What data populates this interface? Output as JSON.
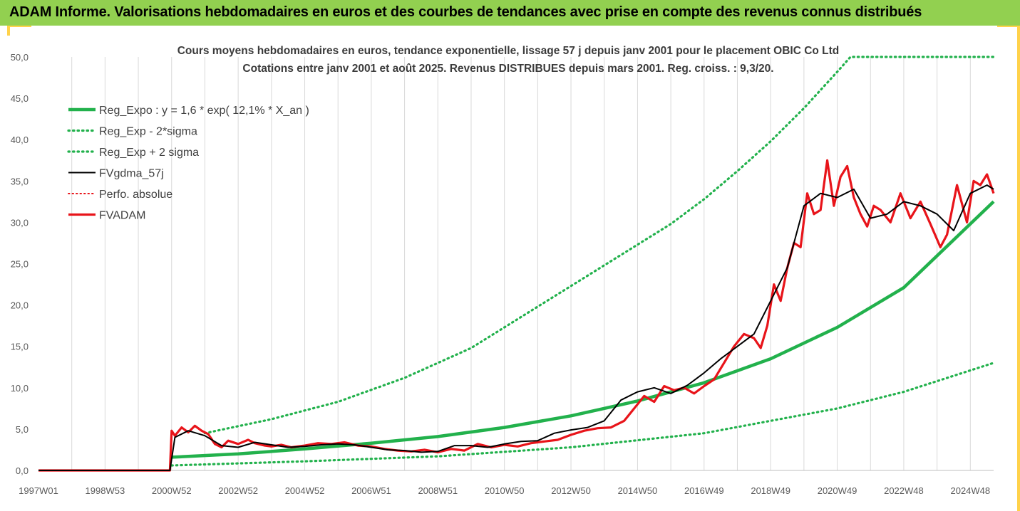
{
  "header": {
    "banner": "ADAM Informe. Valorisations hebdomadaires en euros et des courbes de tendances avec prise en compte des revenus connus distribués"
  },
  "colors": {
    "banner_bg": "#92d050",
    "trend_green": "#22b14c",
    "price_red": "#e8141a",
    "smooth_black": "#000000",
    "grid": "#d9d9d9"
  },
  "chart_data": {
    "type": "line",
    "title": "Cours moyens hebdomadaires en euros, tendance exponentielle, lissage 57 j depuis janv 2001 pour le placement OBIC Co Ltd",
    "subtitle": "Cotations entre janv 2001 et août 2025.  Revenus DISTRIBUES depuis mars 2001. Reg. croiss. : 9,3/20.",
    "xlabel": "",
    "ylabel": "",
    "x_range": [
      1997.0,
      2025.7
    ],
    "ylim": [
      0,
      50
    ],
    "y_ticks": [
      "0,0",
      "5,0",
      "10,0",
      "15,0",
      "20,0",
      "25,0",
      "30,0",
      "35,0",
      "40,0",
      "45,0",
      "50,0"
    ],
    "x_tick_labels": [
      "1997W01",
      "1998W53",
      "2000W52",
      "2002W52",
      "2004W52",
      "2006W51",
      "2008W51",
      "2010W50",
      "2012W50",
      "2014W50",
      "2016W49",
      "2018W49",
      "2020W49",
      "2022W48",
      "2024W48"
    ],
    "x_tick_positions": [
      1997.0,
      1999.0,
      2001.0,
      2003.0,
      2005.0,
      2007.0,
      2009.0,
      2011.0,
      2013.0,
      2015.0,
      2017.0,
      2019.0,
      2021.0,
      2023.0,
      2025.0
    ],
    "grid": "vertical",
    "legend_position": "top-left",
    "legend": [
      "Reg_Expo : y = 1,6 * exp( 12,1% *  X_an )",
      "Reg_Exp - 2*sigma",
      "Reg_Exp + 2 sigma",
      "FVgdma_57j",
      "Perfo. absolue",
      "FVADAM"
    ],
    "series": [
      {
        "name": "Reg_Expo : y = 1,6 * exp( 12,1% *  X_an )",
        "style": "solid-thick-green",
        "x": [
          2001.0,
          2003.0,
          2005.0,
          2007.0,
          2009.0,
          2011.0,
          2013.0,
          2015.0,
          2017.0,
          2019.0,
          2021.0,
          2023.0,
          2025.7
        ],
        "y": [
          1.6,
          2.0,
          2.6,
          3.3,
          4.1,
          5.2,
          6.6,
          8.4,
          10.6,
          13.5,
          17.3,
          22.1,
          32.5
        ]
      },
      {
        "name": "Reg_Exp - 2*sigma",
        "style": "dotted-green",
        "x": [
          2001.0,
          2005.0,
          2009.0,
          2013.0,
          2017.0,
          2021.0,
          2023.0,
          2025.7
        ],
        "y": [
          0.6,
          1.1,
          1.7,
          2.8,
          4.5,
          7.5,
          9.5,
          13.0
        ]
      },
      {
        "name": "Reg_Exp + 2 sigma",
        "style": "dotted-green",
        "x": [
          2002.0,
          2004.0,
          2006.0,
          2008.0,
          2010.0,
          2012.0,
          2014.0,
          2016.0,
          2017.0,
          2018.0,
          2019.0,
          2020.0,
          2021.0,
          2021.4,
          2025.7
        ],
        "y": [
          4.5,
          6.2,
          8.3,
          11.2,
          14.8,
          19.8,
          24.8,
          29.8,
          32.8,
          36.2,
          39.8,
          43.8,
          48.2,
          50.0,
          50.0
        ]
      },
      {
        "name": "FVgdma_57j",
        "style": "solid-black",
        "x": [
          1997.0,
          2000.95,
          2001.1,
          2001.5,
          2002.0,
          2002.5,
          2003.0,
          2003.5,
          2004.0,
          2004.5,
          2005.0,
          2005.5,
          2006.0,
          2006.5,
          2007.0,
          2007.5,
          2008.0,
          2008.5,
          2009.0,
          2009.5,
          2010.0,
          2010.5,
          2011.0,
          2011.5,
          2012.0,
          2012.5,
          2013.0,
          2013.5,
          2014.0,
          2014.5,
          2015.0,
          2015.5,
          2016.0,
          2016.5,
          2017.0,
          2017.5,
          2018.0,
          2018.5,
          2019.0,
          2019.5,
          2020.0,
          2020.5,
          2021.0,
          2021.5,
          2022.0,
          2022.5,
          2023.0,
          2023.5,
          2024.0,
          2024.5,
          2025.0,
          2025.5,
          2025.7
        ],
        "y": [
          0,
          0,
          4.0,
          4.8,
          4.2,
          3.0,
          2.8,
          3.4,
          3.1,
          2.8,
          2.9,
          3.1,
          3.2,
          3.1,
          2.8,
          2.5,
          2.4,
          2.2,
          2.3,
          3.0,
          3.0,
          2.8,
          3.2,
          3.5,
          3.6,
          4.5,
          4.9,
          5.2,
          6.0,
          8.5,
          9.5,
          10.0,
          9.3,
          10.3,
          11.8,
          13.5,
          15.0,
          16.5,
          20.5,
          24.5,
          32.0,
          33.5,
          33.0,
          34.0,
          30.5,
          31.0,
          32.5,
          32.0,
          31.0,
          29.0,
          33.5,
          34.5,
          34.0
        ]
      },
      {
        "name": "FVADAM",
        "style": "solid-thick-red",
        "x": [
          1997.0,
          2000.95,
          2001.0,
          2001.1,
          2001.3,
          2001.5,
          2001.7,
          2001.9,
          2002.1,
          2002.3,
          2002.5,
          2002.7,
          2003.0,
          2003.3,
          2003.5,
          2003.8,
          2004.0,
          2004.3,
          2004.6,
          2005.0,
          2005.4,
          2005.8,
          2006.2,
          2006.6,
          2007.0,
          2007.4,
          2007.8,
          2008.2,
          2008.6,
          2009.0,
          2009.4,
          2009.8,
          2010.2,
          2010.6,
          2011.0,
          2011.4,
          2011.8,
          2012.2,
          2012.6,
          2013.0,
          2013.4,
          2013.8,
          2014.2,
          2014.6,
          2014.9,
          2015.2,
          2015.5,
          2015.8,
          2016.1,
          2016.4,
          2016.7,
          2017.0,
          2017.3,
          2017.6,
          2017.9,
          2018.2,
          2018.5,
          2018.7,
          2018.9,
          2019.1,
          2019.3,
          2019.5,
          2019.7,
          2019.9,
          2020.1,
          2020.3,
          2020.5,
          2020.7,
          2020.9,
          2021.1,
          2021.3,
          2021.5,
          2021.7,
          2021.9,
          2022.1,
          2022.3,
          2022.6,
          2022.9,
          2023.2,
          2023.5,
          2023.8,
          2024.1,
          2024.3,
          2024.6,
          2024.9,
          2025.1,
          2025.3,
          2025.5,
          2025.7
        ],
        "y": [
          0,
          0,
          4.8,
          4.2,
          5.2,
          4.6,
          5.4,
          4.8,
          4.4,
          3.2,
          2.8,
          3.6,
          3.2,
          3.7,
          3.3,
          3.0,
          2.9,
          3.1,
          2.8,
          3.0,
          3.3,
          3.2,
          3.4,
          3.0,
          2.9,
          2.6,
          2.4,
          2.3,
          2.5,
          2.2,
          2.6,
          2.4,
          3.2,
          2.8,
          3.1,
          2.9,
          3.3,
          3.5,
          3.7,
          4.3,
          4.8,
          5.1,
          5.2,
          6.0,
          7.5,
          9.0,
          8.3,
          10.2,
          9.7,
          10.0,
          9.3,
          10.2,
          11.0,
          13.0,
          15.0,
          16.5,
          16.0,
          14.8,
          17.5,
          22.5,
          20.5,
          24.5,
          27.5,
          27.0,
          33.5,
          31.0,
          31.5,
          37.5,
          32.0,
          35.5,
          36.8,
          33.0,
          31.0,
          29.5,
          32.0,
          31.5,
          30.0,
          33.5,
          30.5,
          32.5,
          29.8,
          27.0,
          28.5,
          34.5,
          30.0,
          35.0,
          34.5,
          35.8,
          33.5
        ]
      }
    ]
  }
}
